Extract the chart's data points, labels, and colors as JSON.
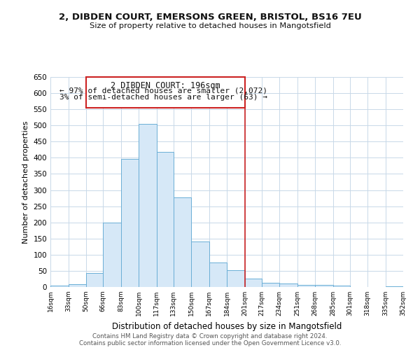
{
  "title_line1": "2, DIBDEN COURT, EMERSONS GREEN, BRISTOL, BS16 7EU",
  "title_line2": "Size of property relative to detached houses in Mangotsfield",
  "xlabel": "Distribution of detached houses by size in Mangotsfield",
  "ylabel": "Number of detached properties",
  "bar_edges": [
    16,
    33,
    50,
    66,
    83,
    100,
    117,
    133,
    150,
    167,
    184,
    201,
    217,
    234,
    251,
    268,
    285,
    301,
    318,
    335,
    352
  ],
  "bar_heights": [
    5,
    8,
    44,
    200,
    397,
    505,
    418,
    278,
    140,
    76,
    52,
    25,
    12,
    10,
    7,
    6,
    5,
    1,
    0,
    3
  ],
  "bar_color": "#d6e8f7",
  "bar_edge_color": "#6aaed6",
  "vline_x": 201,
  "vline_color": "#cc2222",
  "annotation_title": "2 DIBDEN COURT: 196sqm",
  "annotation_line1": "← 97% of detached houses are smaller (2,072)",
  "annotation_line2": "3% of semi-detached houses are larger (63) →",
  "annotation_box_color": "#ffffff",
  "annotation_box_edge": "#cc2222",
  "ylim": [
    0,
    650
  ],
  "yticks": [
    0,
    50,
    100,
    150,
    200,
    250,
    300,
    350,
    400,
    450,
    500,
    550,
    600,
    650
  ],
  "xtick_labels": [
    "16sqm",
    "33sqm",
    "50sqm",
    "66sqm",
    "83sqm",
    "100sqm",
    "117sqm",
    "133sqm",
    "150sqm",
    "167sqm",
    "184sqm",
    "201sqm",
    "217sqm",
    "234sqm",
    "251sqm",
    "268sqm",
    "285sqm",
    "301sqm",
    "318sqm",
    "335sqm",
    "352sqm"
  ],
  "footer_line1": "Contains HM Land Registry data © Crown copyright and database right 2024.",
  "footer_line2": "Contains public sector information licensed under the Open Government Licence v3.0.",
  "bg_color": "#ffffff",
  "grid_color": "#c8d8e8"
}
